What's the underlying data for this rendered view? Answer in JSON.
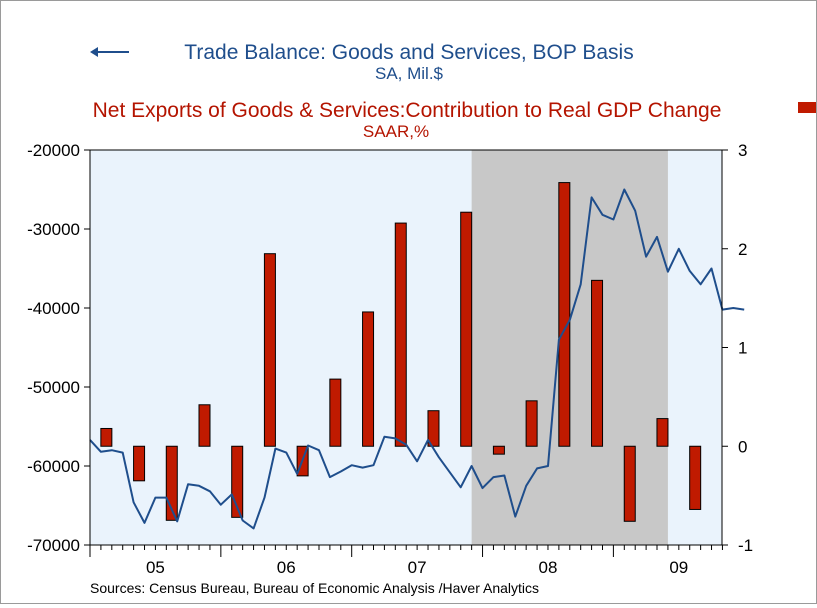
{
  "legend": {
    "line_title": "Trade Balance:  Goods and Services, BOP Basis",
    "line_units": "SA, Mil.$",
    "bar_title": "Net Exports of Goods & Services:Contribution to Real GDP Change",
    "bar_units": "SAAR,%"
  },
  "footer": {
    "source": "Sources:  Census Bureau, Bureau of Economic Analysis /Haver Analytics"
  },
  "colors": {
    "line": "#1f4e8c",
    "bar": "#c01a00",
    "recession": "#c8c8c8",
    "plot_bg": "#eaf3fc",
    "bar_text": "#b41400"
  },
  "chart_data": {
    "type": "bar+line",
    "recession_shading": {
      "start": "2007-12",
      "end": "2009-06"
    },
    "x_axis": {
      "tick_labels": [
        "05",
        "06",
        "07",
        "08",
        "09"
      ]
    },
    "left_axis": {
      "ylim": [
        -70000,
        -20000
      ],
      "ticks": [
        -70000,
        -60000,
        -50000,
        -40000,
        -30000,
        -20000
      ]
    },
    "right_axis": {
      "ylim": [
        -1,
        3
      ],
      "ticks": [
        -1,
        0,
        1,
        2,
        3
      ]
    },
    "series": [
      {
        "name": "Trade Balance:  Goods and Services, BOP Basis",
        "type": "line",
        "axis": "left",
        "frequency": "monthly",
        "start": "2005-01",
        "values": [
          -56700,
          -58200,
          -58000,
          -58300,
          -64600,
          -67200,
          -64000,
          -64000,
          -67000,
          -62300,
          -62500,
          -63200,
          -64900,
          -63600,
          -66900,
          -67900,
          -64000,
          -57800,
          -58300,
          -61000,
          -57400,
          -58000,
          -61400,
          -60700,
          -59900,
          -60200,
          -59900,
          -56300,
          -56500,
          -57300,
          -59400,
          -56700,
          -58900,
          -60800,
          -62700,
          -60000,
          -62800,
          -61400,
          -61200,
          -66400,
          -62500,
          -60300,
          -60000,
          -44000,
          -41500,
          -37000,
          -26000,
          -28200,
          -28800,
          -25000,
          -27700,
          -33500,
          -31000,
          -35400,
          -32500,
          -35300,
          -37000,
          -35000,
          -40200,
          -40000,
          -40200
        ]
      },
      {
        "name": "Net Exports of Goods & Services:Contribution to Real GDP Change",
        "type": "bar",
        "axis": "right",
        "frequency": "quarterly",
        "start": "2005-Q1",
        "values": [
          0.18,
          -0.35,
          -0.75,
          0.42,
          -0.72,
          1.95,
          -0.3,
          0.68,
          1.36,
          2.26,
          0.36,
          2.37,
          -0.08,
          0.46,
          2.67,
          1.68,
          -0.76,
          0.28,
          -0.64
        ]
      }
    ]
  }
}
